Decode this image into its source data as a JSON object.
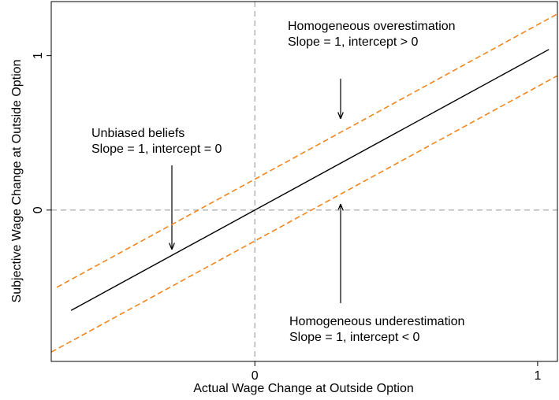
{
  "chart_data": {
    "type": "line",
    "xlabel": "Actual Wage Change at Outside Option",
    "ylabel": "Subjective Wage Change at Outside Option",
    "xlim": [
      -0.72,
      1.07
    ],
    "ylim": [
      -0.98,
      1.35
    ],
    "xticks": [
      0,
      1
    ],
    "yticks": [
      0,
      1
    ],
    "vline": 0,
    "hline": 0,
    "series": [
      {
        "color": "#000000",
        "style": "solid",
        "x": [
          -0.65,
          1.04
        ],
        "values": [
          -0.65,
          1.04
        ]
      },
      {
        "color": "#f0861e",
        "style": "dashed",
        "x": [
          -0.7,
          1.07
        ],
        "values": [
          -0.5,
          1.27
        ]
      },
      {
        "color": "#f0861e",
        "style": "dashed",
        "x": [
          -0.72,
          1.07
        ],
        "values": [
          -0.92,
          0.87
        ]
      }
    ],
    "annotations": [
      {
        "lines": [
          "Homogeneous overestimation",
          "Slope = 1, intercept > 0"
        ]
      },
      {
        "lines": [
          "Unbiased beliefs",
          "Slope = 1, intercept = 0"
        ]
      },
      {
        "lines": [
          "Homogeneous underestimation",
          "Slope = 1, intercept < 0"
        ]
      }
    ]
  }
}
